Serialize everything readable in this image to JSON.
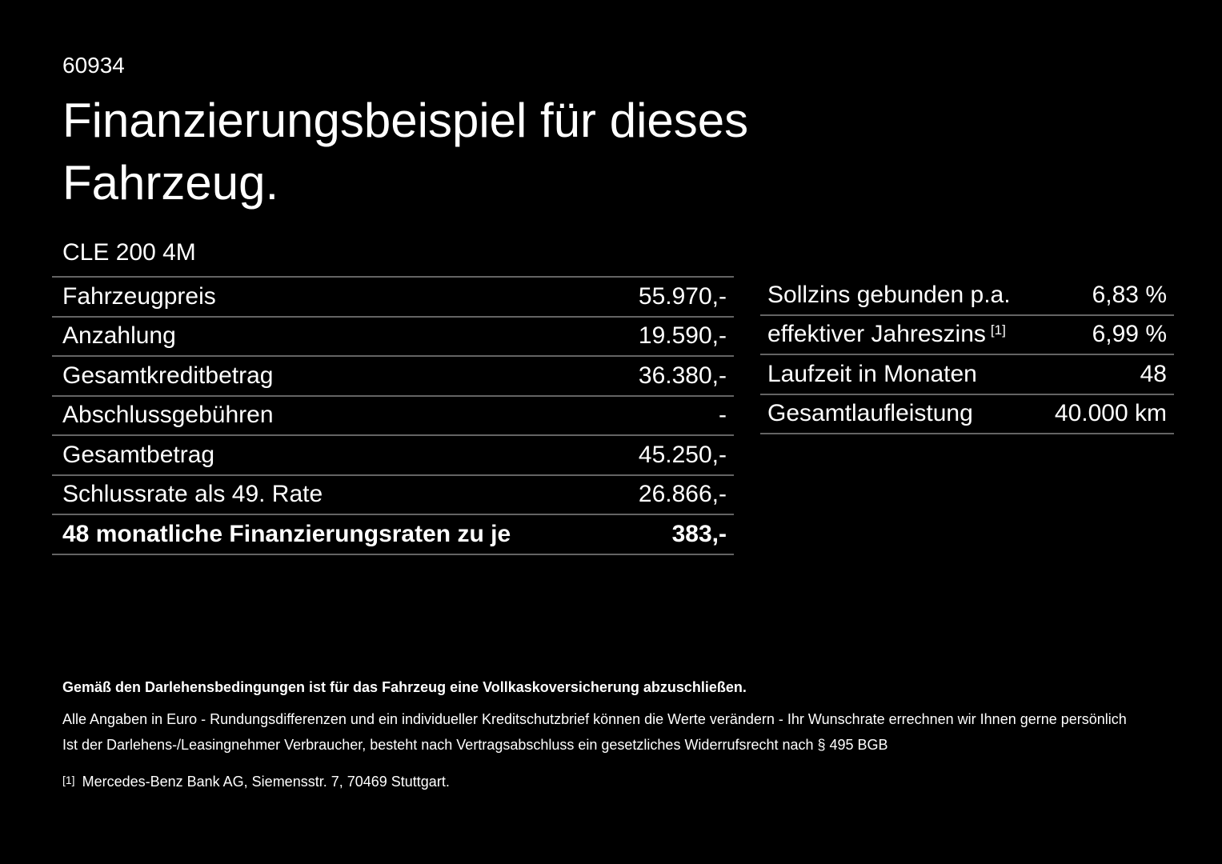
{
  "page": {
    "background_color": "#000000",
    "text_color": "#ffffff",
    "divider_color": "#646464"
  },
  "header": {
    "doc_number": "60934",
    "title_line1": "Finanzierungsbeispiel für dieses",
    "title_line2": "Fahrzeug.",
    "model": "CLE 200 4M"
  },
  "finance_table": {
    "rows": [
      {
        "label": "Fahrzeugpreis",
        "value": "55.970,-"
      },
      {
        "label": "Anzahlung",
        "value": "19.590,-"
      },
      {
        "label": "Gesamtkreditbetrag",
        "value": "36.380,-"
      },
      {
        "label": "Abschlussgebühren",
        "value": "-"
      },
      {
        "label": "Gesamtbetrag",
        "value": "45.250,-"
      },
      {
        "label": "Schlussrate als 49. Rate",
        "value": "26.866,-"
      }
    ],
    "highlight_row": {
      "label": "48 monatliche Finanzierungsraten zu je",
      "value": "383,-"
    }
  },
  "conditions_table": {
    "rows": [
      {
        "label": "Sollzins gebunden p.a.",
        "superscript": "",
        "value": "6,83 %"
      },
      {
        "label": "effektiver Jahreszins",
        "superscript": "[1]",
        "value": "6,99 %"
      },
      {
        "label": "Laufzeit in Monaten",
        "superscript": "",
        "value": "48"
      },
      {
        "label": "Gesamtlaufleistung",
        "superscript": "",
        "value": "40.000 km"
      }
    ]
  },
  "footnotes": {
    "bold_note": "Gemäß den Darlehensbedingungen ist für das Fahrzeug eine Vollkaskoversicherung abzuschließen.",
    "note_line1": "Alle Angaben in Euro - Rundungsdifferenzen und ein individueller Kreditschutzbrief können die Werte verändern - Ihr Wunschrate errechnen wir Ihnen gerne persönlich",
    "note_line2": "Ist der Darlehens-/Leasingnehmer Verbraucher, besteht nach Vertragsabschluss ein gesetzliches Widerrufsrecht nach § 495 BGB",
    "footnote_marker": "[1]",
    "footnote_text": "Mercedes-Benz Bank AG, Siemensstr. 7, 70469 Stuttgart."
  }
}
